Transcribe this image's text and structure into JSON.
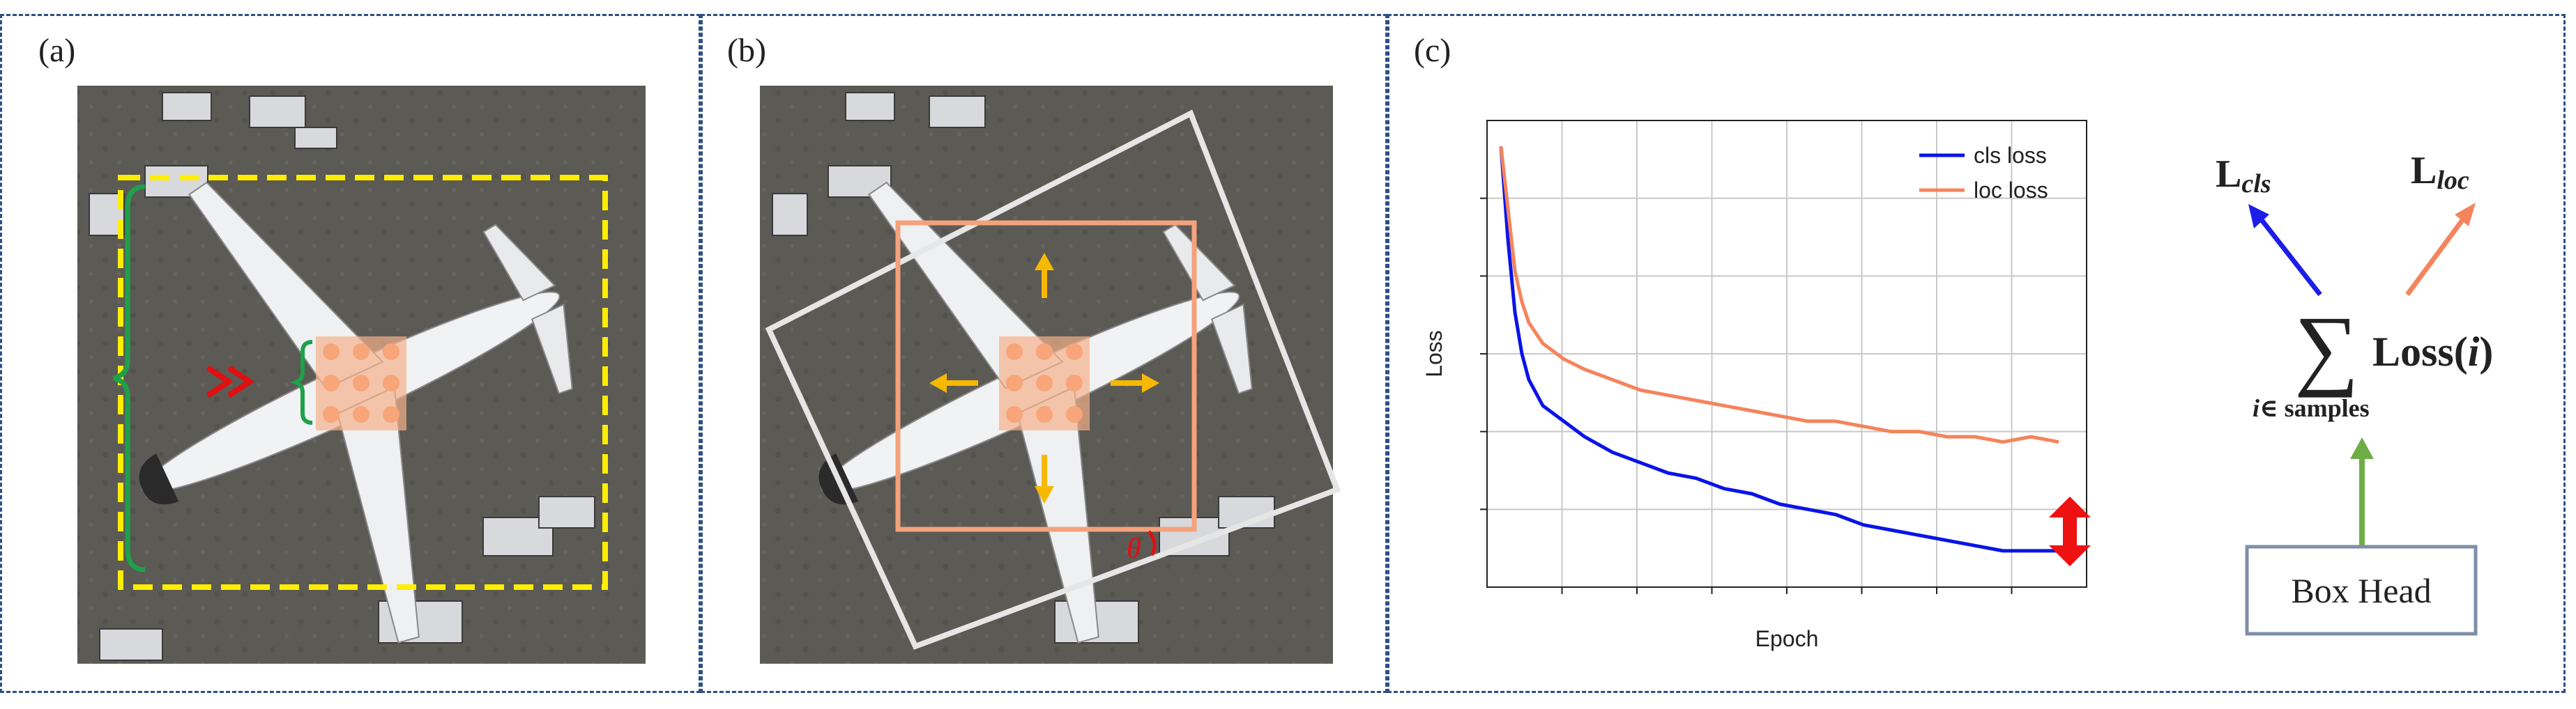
{
  "panels": {
    "a": {
      "label": "(a)"
    },
    "b": {
      "label": "(b)",
      "angle_symbol": "θ"
    },
    "c": {
      "label": "(c)"
    }
  },
  "chart_data": {
    "type": "line",
    "title": "",
    "xlabel": "Epoch",
    "ylabel": "Loss",
    "legend_position": "top-right",
    "grid": true,
    "x": [
      0,
      5,
      10,
      15,
      20,
      30,
      45,
      60,
      80,
      100,
      120,
      140,
      160,
      180,
      200,
      220,
      240,
      260,
      280,
      300,
      320,
      340,
      360,
      380,
      400
    ],
    "series": [
      {
        "name": "cls loss",
        "color": "#0a14e6",
        "values": [
          1.0,
          0.82,
          0.68,
          0.6,
          0.55,
          0.5,
          0.47,
          0.44,
          0.41,
          0.39,
          0.37,
          0.36,
          0.34,
          0.33,
          0.31,
          0.3,
          0.29,
          0.27,
          0.26,
          0.25,
          0.24,
          0.23,
          0.22,
          0.22,
          0.22
        ]
      },
      {
        "name": "loc loss",
        "color": "#f4845c",
        "values": [
          1.0,
          0.88,
          0.76,
          0.7,
          0.66,
          0.62,
          0.59,
          0.57,
          0.55,
          0.53,
          0.52,
          0.51,
          0.5,
          0.49,
          0.48,
          0.47,
          0.47,
          0.46,
          0.45,
          0.45,
          0.44,
          0.44,
          0.43,
          0.44,
          0.43
        ]
      }
    ]
  },
  "loss_diagram": {
    "l_cls": {
      "base": "L",
      "sub": "cls"
    },
    "l_loc": {
      "base": "L",
      "sub": "loc"
    },
    "sum_symbol": "∑",
    "sum_subscript_var": "i",
    "sum_subscript_rest": "∈ samples",
    "loss_text": "Loss(",
    "loss_var": "i",
    "loss_close": ")",
    "box_head": "Box Head",
    "colors": {
      "cls_arrow": "#1d1dea",
      "loc_arrow": "#f4845c",
      "head_arrow": "#6fad47",
      "box_border": "#7f8fa8"
    }
  }
}
